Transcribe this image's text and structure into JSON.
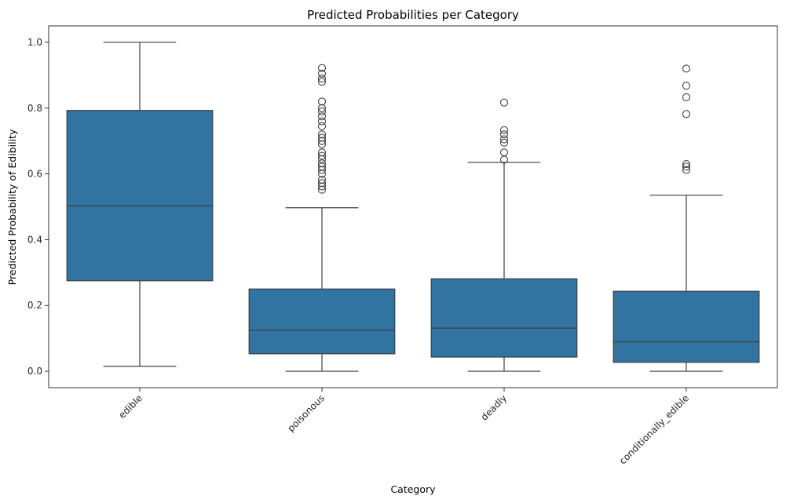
{
  "chart_data": {
    "type": "box",
    "title": "Predicted Probabilities per Category",
    "xlabel": "Category",
    "ylabel": "Predicted Probability of Edibility",
    "ylim": [
      -0.05,
      1.05
    ],
    "yticks": [
      "0.0",
      "0.2",
      "0.4",
      "0.6",
      "0.8",
      "1.0"
    ],
    "box_color": "#3274a1",
    "line_color": "#3f3f3f",
    "grid": false,
    "categories": [
      "edible",
      "poisonous",
      "deadly",
      "conditionally_edible"
    ],
    "boxes": [
      {
        "category": "edible",
        "whisker_low": 0.015,
        "q1": 0.275,
        "median": 0.503,
        "q3": 0.793,
        "whisker_high": 1.0,
        "outliers": []
      },
      {
        "category": "poisonous",
        "whisker_low": 0.0,
        "q1": 0.053,
        "median": 0.125,
        "q3": 0.25,
        "whisker_high": 0.497,
        "outliers": [
          0.552,
          0.562,
          0.572,
          0.582,
          0.6,
          0.612,
          0.622,
          0.632,
          0.645,
          0.655,
          0.665,
          0.69,
          0.7,
          0.71,
          0.72,
          0.745,
          0.76,
          0.775,
          0.79,
          0.8,
          0.82,
          0.88,
          0.89,
          0.905,
          0.922
        ]
      },
      {
        "category": "deadly",
        "whisker_low": 0.0,
        "q1": 0.043,
        "median": 0.131,
        "q3": 0.281,
        "whisker_high": 0.635,
        "outliers": [
          0.643,
          0.665,
          0.695,
          0.705,
          0.72,
          0.733,
          0.817
        ]
      },
      {
        "category": "conditionally_edible",
        "whisker_low": 0.0,
        "q1": 0.027,
        "median": 0.089,
        "q3": 0.243,
        "whisker_high": 0.535,
        "outliers": [
          0.612,
          0.622,
          0.63,
          0.782,
          0.833,
          0.868,
          0.92
        ]
      }
    ]
  }
}
